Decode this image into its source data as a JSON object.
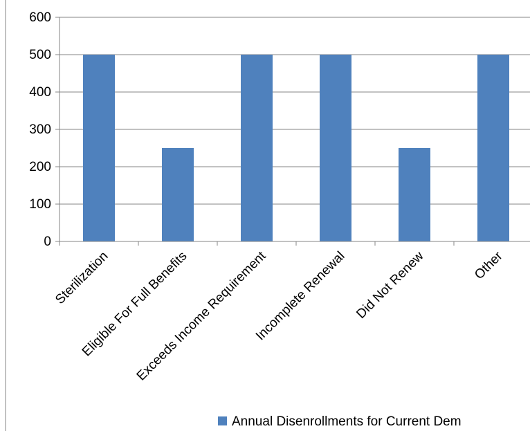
{
  "chart_data": {
    "type": "bar",
    "categories": [
      "Sterilization",
      "Eligible For Full Benefits",
      "Exceeds Income Requirement",
      "Incomplete Renewal",
      "Did Not Renew",
      "Other"
    ],
    "series": [
      {
        "name": "Annual Disenrollments for Current Dem",
        "values": [
          500,
          250,
          500,
          500,
          250,
          500
        ],
        "color": "#4F81BD"
      }
    ],
    "y_ticks": [
      "0",
      "100",
      "200",
      "300",
      "400",
      "500",
      "600"
    ],
    "ylim": [
      0,
      600
    ],
    "grid": true,
    "legend_position": "bottom-right"
  }
}
